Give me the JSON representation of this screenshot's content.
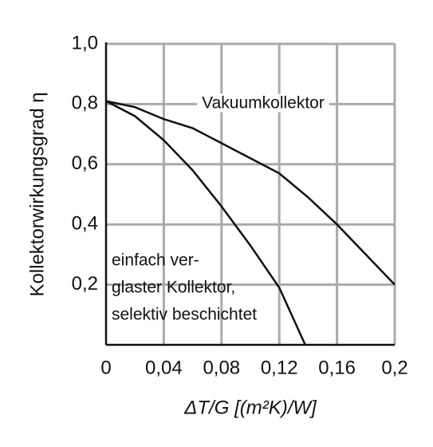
{
  "chart_data": {
    "type": "line",
    "xlabel": "ΔT/G   [(m²K)/W]",
    "ylabel": "Kollektorwirkungsgrad η",
    "xlim": [
      0,
      0.2
    ],
    "xticks": [
      {
        "value": 0,
        "label": "0"
      },
      {
        "value": 0.04,
        "label": "0,04"
      },
      {
        "value": 0.08,
        "label": "0,08"
      },
      {
        "value": 0.12,
        "label": "0,12"
      },
      {
        "value": 0.16,
        "label": "0,16"
      },
      {
        "value": 0.2,
        "label": "0,2"
      }
    ],
    "ylim": [
      0,
      1
    ],
    "yticks": [
      {
        "value": 0.2,
        "label": "0,2"
      },
      {
        "value": 0.4,
        "label": "0,4"
      },
      {
        "value": 0.6,
        "label": "0,6"
      },
      {
        "value": 0.8,
        "label": "0,8"
      },
      {
        "value": 1,
        "label": "1,0"
      }
    ],
    "grid": true,
    "series": [
      {
        "color": "#111111",
        "x": [
          0,
          0.02,
          0.04,
          0.06,
          0.08,
          0.1,
          0.12,
          0.14,
          0.16,
          0.18,
          0.2
        ],
        "values": [
          0.81,
          0.79,
          0.75,
          0.72,
          0.67,
          0.62,
          0.57,
          0.49,
          0.4,
          0.3,
          0.2
        ]
      },
      {
        "color": "#111111",
        "x": [
          0,
          0.02,
          0.04,
          0.06,
          0.08,
          0.1,
          0.12,
          0.138
        ],
        "values": [
          0.81,
          0.76,
          0.68,
          0.58,
          0.46,
          0.33,
          0.19,
          0
        ]
      }
    ],
    "annotations": [
      {
        "lines": [
          "Vakuumkollektor"
        ]
      },
      {
        "lines": [
          "einfach ver-",
          "glaster Kollektor,",
          "selektiv beschichtet"
        ]
      }
    ]
  }
}
